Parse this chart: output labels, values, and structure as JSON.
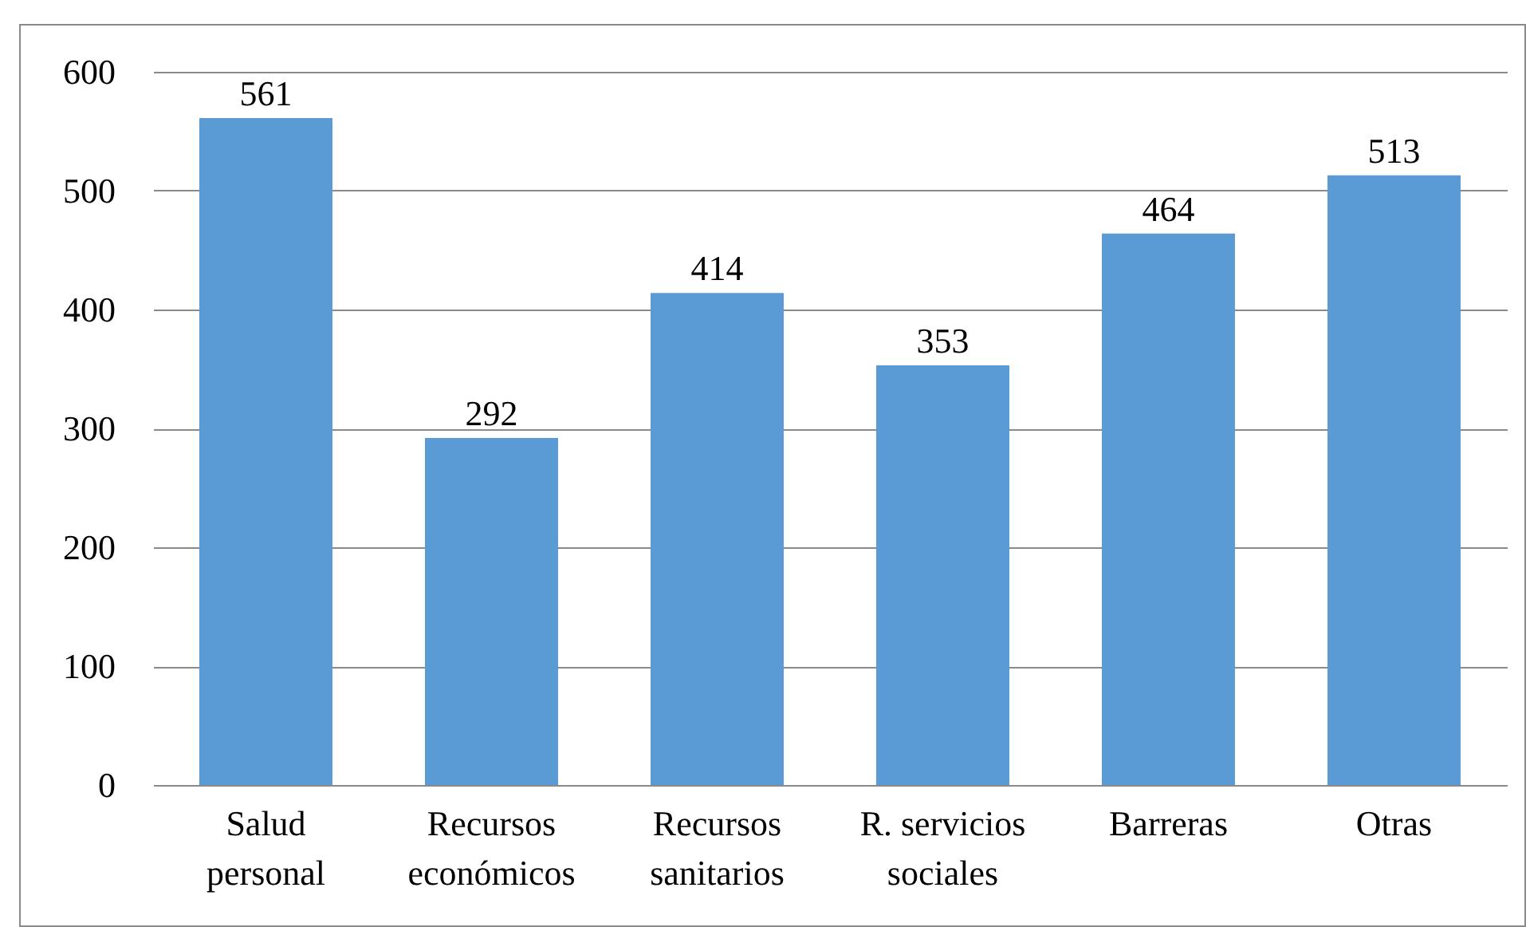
{
  "chart_data": {
    "type": "bar",
    "categories": [
      "Salud personal",
      "Recursos económicos",
      "Recursos sanitarios",
      "R. servicios sociales",
      "Barreras",
      "Otras"
    ],
    "values": [
      561,
      292,
      414,
      353,
      464,
      513
    ],
    "color": "#5b9bd5",
    "ylim": [
      0,
      600
    ],
    "yticks": [
      0,
      100,
      200,
      300,
      400,
      500,
      600
    ],
    "grid": "y",
    "data_labels": true
  }
}
